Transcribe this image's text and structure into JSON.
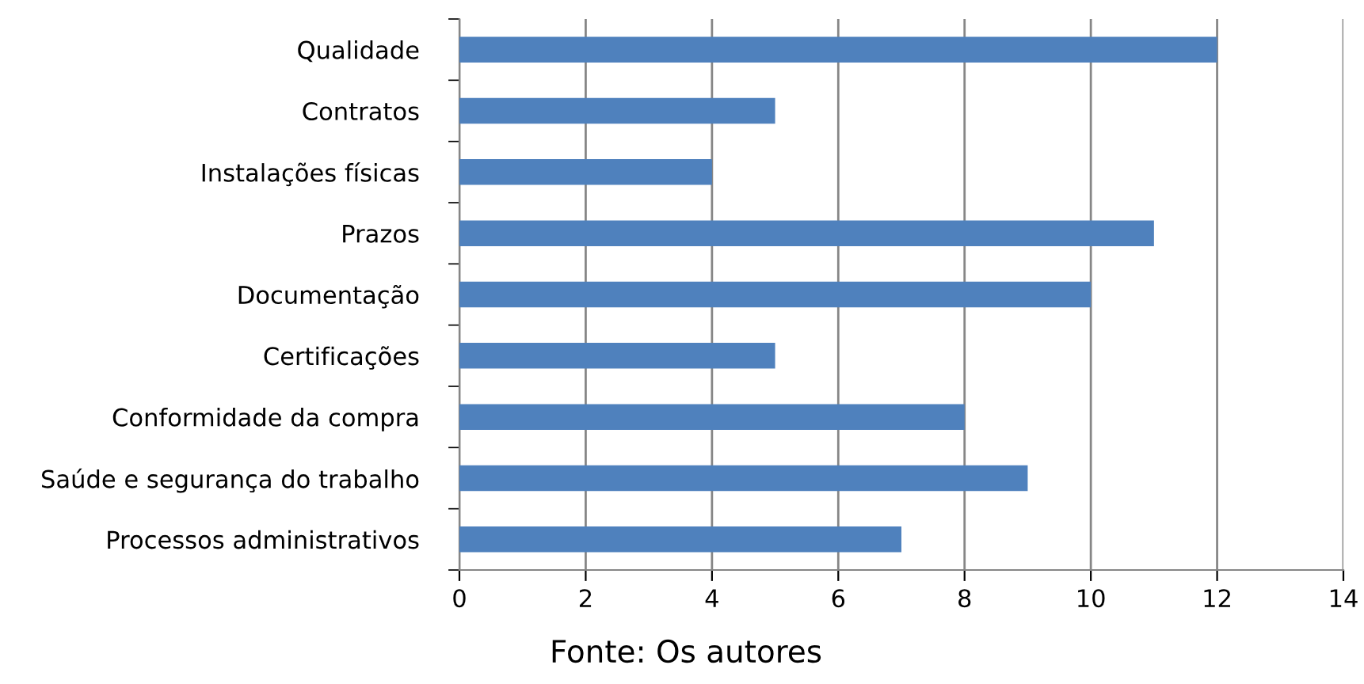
{
  "chart_data": {
    "type": "bar",
    "orientation": "horizontal",
    "categories": [
      "Qualidade",
      "Contratos",
      "Instalações físicas",
      "Prazos",
      "Documentação",
      "Certificações",
      "Conformidade da compra",
      "Saúde e segurança do trabalho",
      "Processos administrativos"
    ],
    "values": [
      12,
      5,
      4,
      11,
      10,
      5,
      8,
      9,
      7
    ],
    "color": "#4f81bd",
    "xlim": [
      0,
      14
    ],
    "xticks": [
      0,
      2,
      4,
      6,
      8,
      10,
      12,
      14
    ],
    "grid": "x",
    "annotations": [
      "Fonte: Os autores"
    ]
  }
}
